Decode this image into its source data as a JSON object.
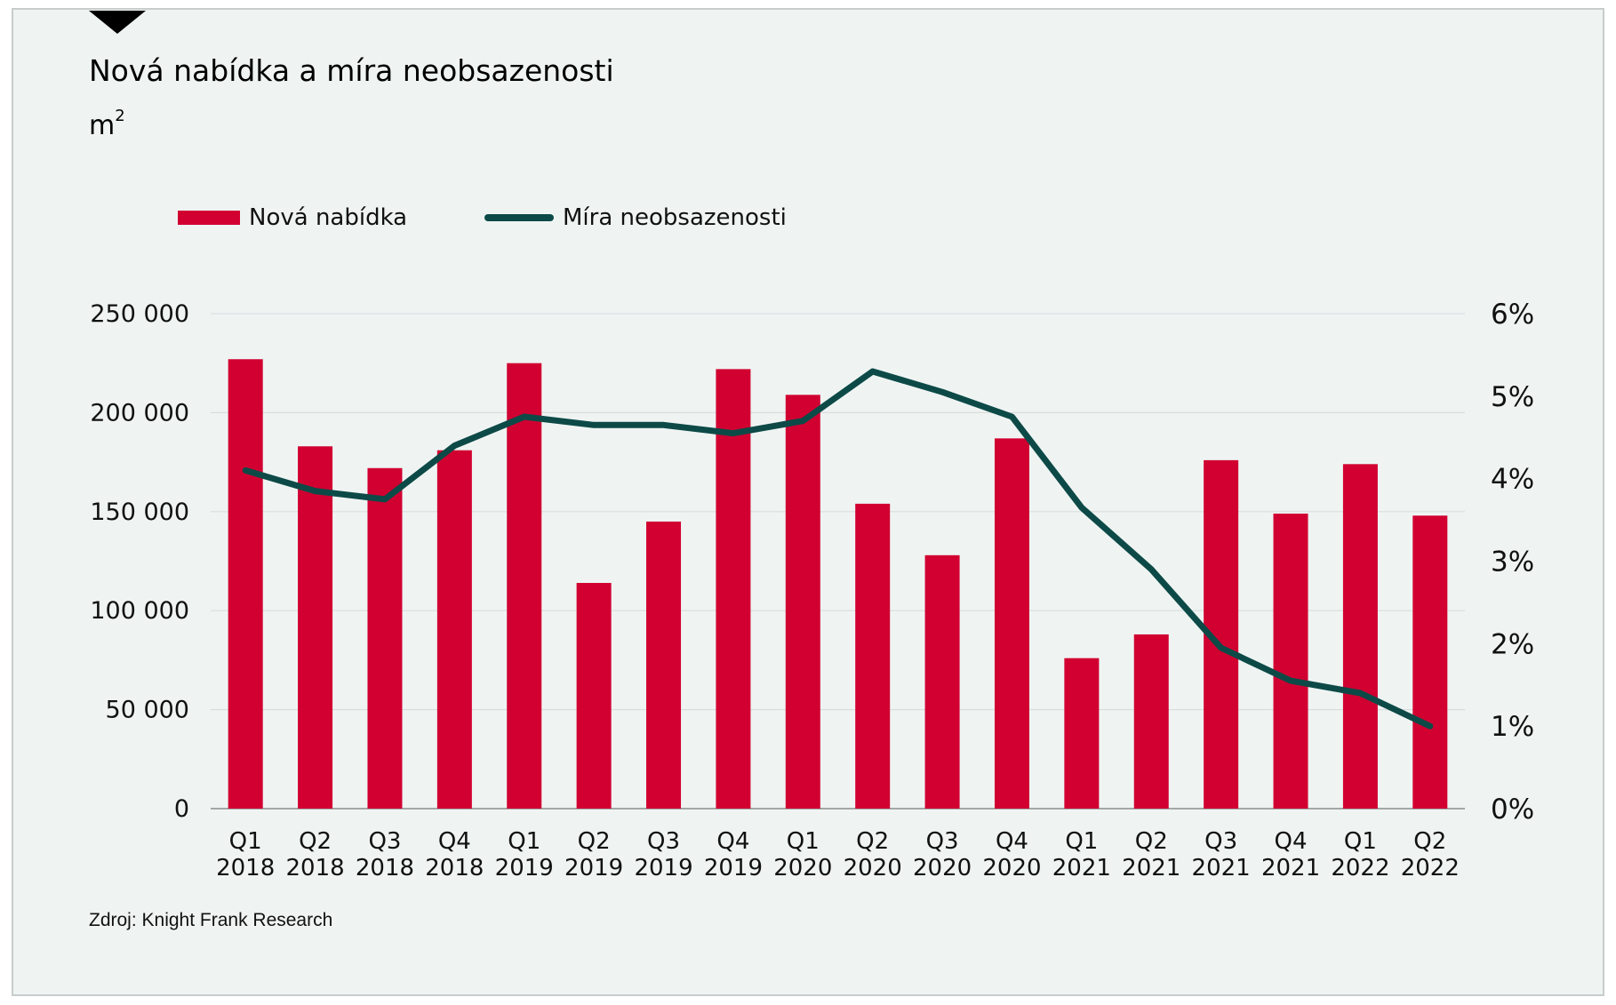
{
  "title": "Nová nabídka a míra neobsazenosti",
  "unit": "m",
  "unit_superscript": "2",
  "source": "Zdroj: Knight Frank Research",
  "colors": {
    "bar": "#d10031",
    "line": "#0d4a47",
    "grid": "#d9dedd",
    "background": "#eff4f3"
  },
  "chart_data": {
    "type": "bar",
    "categories": [
      [
        "Q1",
        "2018"
      ],
      [
        "Q2",
        "2018"
      ],
      [
        "Q3",
        "2018"
      ],
      [
        "Q4",
        "2018"
      ],
      [
        "Q1",
        "2019"
      ],
      [
        "Q2",
        "2019"
      ],
      [
        "Q3",
        "2019"
      ],
      [
        "Q4",
        "2019"
      ],
      [
        "Q1",
        "2020"
      ],
      [
        "Q2",
        "2020"
      ],
      [
        "Q3",
        "2020"
      ],
      [
        "Q4",
        "2020"
      ],
      [
        "Q1",
        "2021"
      ],
      [
        "Q2",
        "2021"
      ],
      [
        "Q3",
        "2021"
      ],
      [
        "Q4",
        "2021"
      ],
      [
        "Q1",
        "2022"
      ],
      [
        "Q2",
        "2022"
      ]
    ],
    "series": [
      {
        "name": "Nová nabídka",
        "type": "bar",
        "axis": "left",
        "values": [
          227000,
          183000,
          172000,
          181000,
          225000,
          114000,
          145000,
          222000,
          209000,
          154000,
          128000,
          187000,
          76000,
          88000,
          176000,
          149000,
          174000,
          148000
        ]
      },
      {
        "name": "Míra neobsazenosti",
        "type": "line",
        "axis": "right",
        "values": [
          4.1,
          3.85,
          3.75,
          4.4,
          4.75,
          4.65,
          4.65,
          4.55,
          4.7,
          5.3,
          5.05,
          4.75,
          3.65,
          2.9,
          1.95,
          1.55,
          1.4,
          1.0
        ]
      }
    ],
    "y_left": {
      "min": 0,
      "max": 250000,
      "ticks": [
        "0",
        "50 000",
        "100 000",
        "150 000",
        "200 000",
        "250 000"
      ]
    },
    "y_right": {
      "min": 0,
      "max": 6,
      "ticks": [
        "0%",
        "1%",
        "2%",
        "3%",
        "4%",
        "5%",
        "6%"
      ]
    },
    "grid": true,
    "legend_position": "top-left"
  }
}
